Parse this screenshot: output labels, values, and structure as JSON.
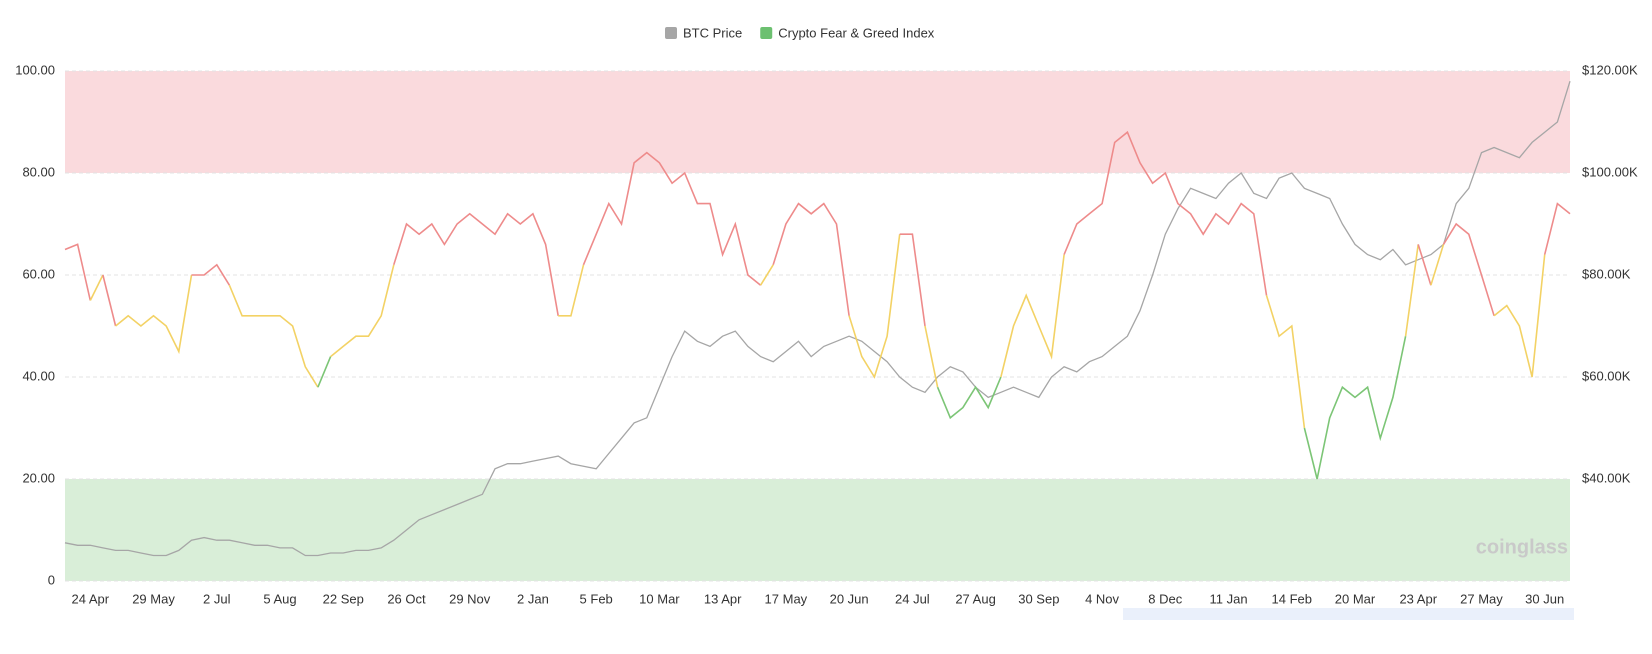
{
  "chart_data": {
    "type": "line",
    "watermark": "coinglass",
    "categories": [
      null,
      null,
      "24 Apr",
      null,
      null,
      null,
      null,
      "29 May",
      null,
      null,
      null,
      null,
      "2 Jul",
      null,
      null,
      null,
      null,
      "5 Aug",
      null,
      null,
      null,
      null,
      "22 Sep",
      null,
      null,
      null,
      null,
      "26 Oct",
      null,
      null,
      null,
      null,
      "29 Nov",
      null,
      null,
      null,
      null,
      "2 Jan",
      null,
      null,
      null,
      null,
      "5 Feb",
      null,
      null,
      null,
      null,
      "10 Mar",
      null,
      null,
      null,
      null,
      "13 Apr",
      null,
      null,
      null,
      null,
      "17 May",
      null,
      null,
      null,
      null,
      "20 Jun",
      null,
      null,
      null,
      null,
      "24 Jul",
      null,
      null,
      null,
      null,
      "27 Aug",
      null,
      null,
      null,
      null,
      "30 Sep",
      null,
      null,
      null,
      null,
      "4 Nov",
      null,
      null,
      null,
      null,
      "8 Dec",
      null,
      null,
      null,
      null,
      "11 Jan",
      null,
      null,
      null,
      null,
      "14 Feb",
      null,
      null,
      null,
      null,
      "20 Mar",
      null,
      null,
      null,
      null,
      "23 Apr",
      null,
      null,
      null,
      null,
      "27 May",
      null,
      null,
      null,
      null,
      "30 Jun",
      null,
      null
    ],
    "series": [
      {
        "name": "BTC Price",
        "color": "#a6a6a6",
        "axis": "y2",
        "values": [
          27500,
          27000,
          27000,
          26500,
          26000,
          26000,
          25500,
          25000,
          25000,
          26000,
          28000,
          28500,
          28000,
          28000,
          27500,
          27000,
          27000,
          26500,
          26500,
          25000,
          25000,
          25500,
          25500,
          26000,
          26000,
          26500,
          28000,
          30000,
          32000,
          33000,
          34000,
          35000,
          36000,
          37000,
          42000,
          43000,
          43000,
          43500,
          44000,
          44500,
          43000,
          42500,
          42000,
          45000,
          48000,
          51000,
          52000,
          58000,
          64000,
          69000,
          67000,
          66000,
          68000,
          69000,
          66000,
          64000,
          63000,
          65000,
          67000,
          64000,
          66000,
          67000,
          68000,
          67000,
          65000,
          63000,
          60000,
          58000,
          57000,
          60000,
          62000,
          61000,
          58000,
          56000,
          57000,
          58000,
          57000,
          56000,
          60000,
          62000,
          61000,
          63000,
          64000,
          66000,
          68000,
          73000,
          80000,
          88000,
          93000,
          97000,
          96000,
          95000,
          98000,
          100000,
          96000,
          95000,
          99000,
          100000,
          97000,
          96000,
          95000,
          90000,
          86000,
          84000,
          83000,
          85000,
          82000,
          83000,
          84000,
          86000,
          94000,
          97000,
          104000,
          105000,
          104000,
          103000,
          106000,
          108000,
          110000,
          118000
        ]
      },
      {
        "name": "Crypto Fear & Greed Index",
        "color": "#6cc070",
        "values": [
          65,
          66,
          55,
          60,
          50,
          52,
          50,
          52,
          50,
          45,
          60,
          60,
          62,
          58,
          52,
          52,
          52,
          52,
          50,
          42,
          38,
          44,
          46,
          48,
          48,
          52,
          62,
          70,
          68,
          70,
          66,
          70,
          72,
          70,
          68,
          72,
          70,
          72,
          66,
          52,
          52,
          62,
          68,
          74,
          70,
          82,
          84,
          82,
          78,
          80,
          74,
          74,
          64,
          70,
          60,
          58,
          62,
          70,
          74,
          72,
          74,
          70,
          52,
          44,
          40,
          48,
          68,
          68,
          50,
          38,
          32,
          34,
          38,
          34,
          40,
          50,
          56,
          50,
          44,
          64,
          70,
          72,
          74,
          86,
          88,
          82,
          78,
          80,
          74,
          72,
          68,
          72,
          70,
          74,
          72,
          56,
          48,
          50,
          30,
          20,
          32,
          38,
          36,
          38,
          28,
          36,
          48,
          66,
          58,
          66,
          70,
          68,
          60,
          52,
          54,
          50,
          40,
          64,
          74,
          72
        ]
      }
    ],
    "zone_colors": [
      {
        "below": 40,
        "color": "#7cc576"
      },
      {
        "below": 60,
        "color": "#f3d265"
      },
      {
        "below": 101,
        "color": "#ee8b8b"
      }
    ],
    "bands": [
      {
        "from": 80,
        "to": 100,
        "color": "#fadadd"
      },
      {
        "from": 0,
        "to": 20,
        "color": "#d9eed8"
      }
    ],
    "ylim": [
      0,
      100
    ],
    "yticks": [
      0,
      {
        "value": 20,
        "label": "20.00"
      },
      {
        "value": 40,
        "label": "40.00"
      },
      {
        "value": 60,
        "label": "60.00"
      },
      {
        "value": 80,
        "label": "80.00"
      },
      {
        "value": 100,
        "label": "100.00"
      }
    ],
    "y2lim": [
      20000,
      120000
    ],
    "y2ticks": [
      {
        "value": 40000,
        "label": "$40.00K"
      },
      {
        "value": 60000,
        "label": "$60.00K"
      },
      {
        "value": 80000,
        "label": "$80.00K"
      },
      {
        "value": 100000,
        "label": "$100.00K"
      },
      {
        "value": 120000,
        "label": "$120.00K"
      }
    ],
    "grid": true,
    "legend": "top"
  }
}
